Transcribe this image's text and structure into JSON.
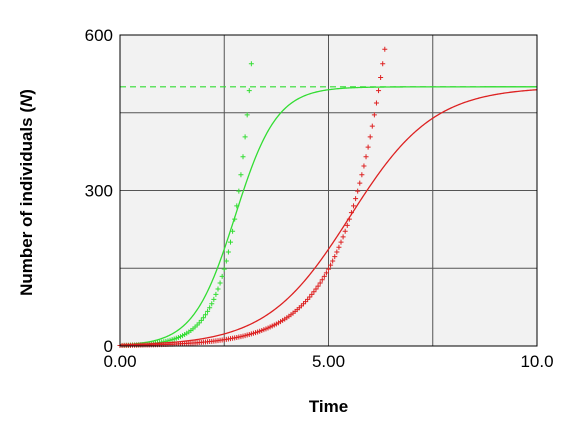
{
  "chart_data": {
    "type": "line",
    "title": "",
    "xlabel": "Time",
    "ylabel_main": "Number of individuals (",
    "ylabel_var": "N",
    "ylabel_end": ")",
    "xlim": [
      0,
      10
    ],
    "ylim": [
      0,
      600
    ],
    "x_ticks": [
      0,
      5,
      10
    ],
    "x_tick_labels": [
      "0.00",
      "5.00",
      "10.0"
    ],
    "y_ticks": [
      0,
      300,
      600
    ],
    "y_tick_labels": [
      "0",
      "300",
      "600"
    ],
    "x_gridlines": [
      2.5,
      5,
      7.5
    ],
    "y_gridlines": [
      150,
      300,
      450
    ],
    "grid": true,
    "legend": "none",
    "carrying_capacity": 500,
    "series": [
      {
        "kind": "logistic",
        "style": "line",
        "color": "#33dd33",
        "K": 500,
        "N0": 2,
        "r": 2.0,
        "x": [
          0,
          0.5,
          1,
          1.5,
          2,
          2.5,
          3,
          3.5,
          4,
          4.5,
          5,
          6,
          7,
          8,
          9,
          10
        ],
        "values": [
          2,
          5.4,
          14.4,
          37,
          88,
          180,
          303,
          407,
          466,
          488,
          496,
          499.5,
          500,
          500,
          500,
          500
        ]
      },
      {
        "kind": "exponential",
        "style": "markers",
        "color": "#33dd33",
        "r": 2.0,
        "N0": 1,
        "x_end": 3.17,
        "x": [
          0,
          0.5,
          1,
          1.5,
          2,
          2.5,
          3,
          3.17
        ],
        "values": [
          1,
          2.7,
          7.4,
          20,
          55,
          148,
          403,
          567
        ]
      },
      {
        "kind": "logistic",
        "style": "line",
        "color": "#dd2222",
        "K": 500,
        "N0": 2,
        "r": 1.0,
        "x": [
          0,
          1,
          2,
          3,
          4,
          5,
          6,
          7,
          8,
          9,
          10
        ],
        "values": [
          2,
          5.4,
          14.4,
          37,
          88,
          180,
          303,
          407,
          466,
          488,
          496
        ]
      },
      {
        "kind": "exponential",
        "style": "markers",
        "color": "#dd2222",
        "r": 1.0,
        "N0": 1,
        "x_end": 6.35,
        "x": [
          0,
          1,
          2,
          3,
          4,
          5,
          6,
          6.35
        ],
        "values": [
          1,
          2.7,
          7.4,
          20,
          55,
          148,
          403,
          572
        ]
      }
    ]
  }
}
